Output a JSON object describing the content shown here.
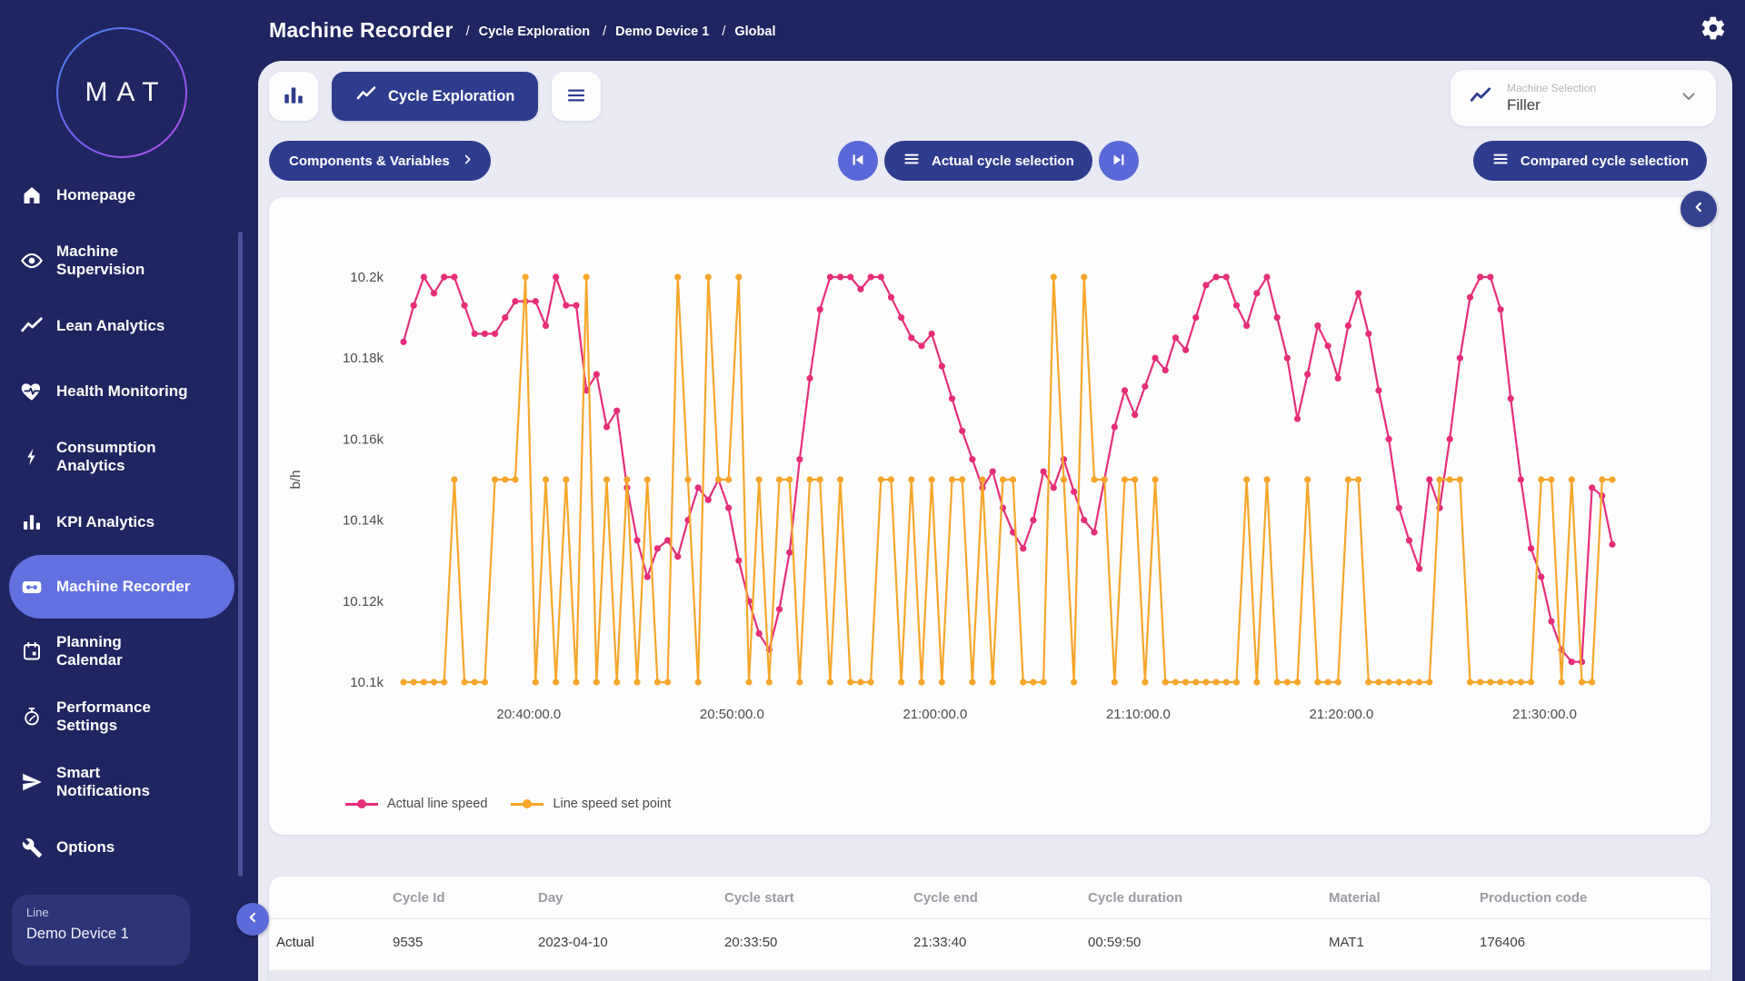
{
  "header": {
    "title": "Machine Recorder",
    "breadcrumbs": [
      "Cycle Exploration",
      "Demo Device 1",
      "Global"
    ],
    "gear_icon": "gear-icon"
  },
  "sidebar": {
    "logo": "MAT",
    "items": [
      {
        "icon": "home-icon",
        "lines": [
          "Homepage"
        ]
      },
      {
        "icon": "eye-icon",
        "lines": [
          "Machine",
          "Supervision"
        ]
      },
      {
        "icon": "trend-icon",
        "lines": [
          "Lean Analytics"
        ]
      },
      {
        "icon": "heart-pulse-icon",
        "lines": [
          "Health Monitoring"
        ]
      },
      {
        "icon": "bolt-icon",
        "lines": [
          "Consumption",
          "Analytics"
        ]
      },
      {
        "icon": "bar-chart-icon",
        "lines": [
          "KPI Analytics"
        ]
      },
      {
        "icon": "cassette-icon",
        "lines": [
          "Machine Recorder"
        ],
        "active": true
      },
      {
        "icon": "calendar-icon",
        "lines": [
          "Planning",
          "Calendar"
        ]
      },
      {
        "icon": "stopwatch-icon",
        "lines": [
          "Performance",
          "Settings"
        ]
      },
      {
        "icon": "send-icon",
        "lines": [
          "Smart",
          "Notifications"
        ]
      },
      {
        "icon": "wrench-icon",
        "lines": [
          "Options"
        ]
      }
    ],
    "line_card": {
      "label": "Line",
      "value": "Demo Device 1"
    }
  },
  "toolbar": {
    "cycle_exploration_label": "Cycle Exploration",
    "components_button": "Components & Variables",
    "actual_cycle_button": "Actual cycle selection",
    "compared_cycle_button": "Compared cycle selection",
    "machine_selection": {
      "label": "Machine Selection",
      "value": "Filler"
    }
  },
  "chart_data": {
    "type": "line",
    "title": "",
    "xlabel": "",
    "ylabel": "b/h",
    "grid": false,
    "legend_position": "bottom-left",
    "x_start": "20:33:50",
    "sample_interval_seconds": 30,
    "ylim": [
      10100,
      10200
    ],
    "y_ticks": [
      {
        "v": 10200,
        "label": "10.2k"
      },
      {
        "v": 10180,
        "label": "10.18k"
      },
      {
        "v": 10160,
        "label": "10.16k"
      },
      {
        "v": 10140,
        "label": "10.14k"
      },
      {
        "v": 10120,
        "label": "10.12k"
      },
      {
        "v": 10100,
        "label": "10.1k"
      }
    ],
    "x_ticks": [
      {
        "t": 370,
        "label": "20:40:00.0"
      },
      {
        "t": 970,
        "label": "20:50:00.0"
      },
      {
        "t": 1570,
        "label": "21:00:00.0"
      },
      {
        "t": 2170,
        "label": "21:10:00.0"
      },
      {
        "t": 2770,
        "label": "21:20:00.0"
      },
      {
        "t": 3370,
        "label": "21:30:00.0"
      }
    ],
    "series": [
      {
        "name": "Actual line speed",
        "color": "#e62e78",
        "values": [
          10184,
          10193,
          10200,
          10196,
          10200,
          10200,
          10193,
          10186,
          10186,
          10186,
          10190,
          10194,
          10194,
          10194,
          10188,
          10200,
          10193,
          10193,
          10172,
          10176,
          10163,
          10167,
          10148,
          10135,
          10126,
          10133,
          10135,
          10131,
          10140,
          10148,
          10145,
          10150,
          10143,
          10130,
          10120,
          10112,
          10108,
          10118,
          10132,
          10155,
          10175,
          10192,
          10200,
          10200,
          10200,
          10197,
          10200,
          10200,
          10195,
          10190,
          10185,
          10183,
          10186,
          10178,
          10170,
          10162,
          10155,
          10148,
          10152,
          10143,
          10137,
          10133,
          10140,
          10152,
          10148,
          10155,
          10147,
          10140,
          10137,
          10150,
          10163,
          10172,
          10166,
          10173,
          10180,
          10177,
          10185,
          10182,
          10190,
          10198,
          10200,
          10200,
          10193,
          10188,
          10196,
          10200,
          10190,
          10180,
          10165,
          10176,
          10188,
          10183,
          10175,
          10188,
          10196,
          10186,
          10172,
          10160,
          10143,
          10135,
          10128,
          10150,
          10143,
          10160,
          10180,
          10195,
          10200,
          10200,
          10192,
          10170,
          10150,
          10133,
          10126,
          10115,
          10108,
          10105,
          10105,
          10148,
          10146,
          10134
        ]
      },
      {
        "name": "Line speed set point",
        "color": "#f7a62b",
        "values": [
          10100,
          10100,
          10100,
          10100,
          10100,
          10150,
          10100,
          10100,
          10100,
          10150,
          10150,
          10150,
          10200,
          10100,
          10150,
          10100,
          10150,
          10100,
          10200,
          10100,
          10150,
          10100,
          10150,
          10100,
          10150,
          10100,
          10100,
          10200,
          10150,
          10100,
          10200,
          10150,
          10150,
          10200,
          10100,
          10150,
          10100,
          10150,
          10150,
          10100,
          10150,
          10150,
          10100,
          10150,
          10100,
          10100,
          10100,
          10150,
          10150,
          10100,
          10150,
          10100,
          10150,
          10100,
          10150,
          10150,
          10100,
          10150,
          10100,
          10150,
          10150,
          10100,
          10100,
          10100,
          10200,
          10150,
          10100,
          10200,
          10150,
          10150,
          10100,
          10150,
          10150,
          10100,
          10150,
          10100,
          10100,
          10100,
          10100,
          10100,
          10100,
          10100,
          10100,
          10150,
          10100,
          10150,
          10100,
          10100,
          10100,
          10150,
          10100,
          10100,
          10100,
          10150,
          10150,
          10100,
          10100,
          10100,
          10100,
          10100,
          10100,
          10100,
          10150,
          10150,
          10150,
          10100,
          10100,
          10100,
          10100,
          10100,
          10100,
          10100,
          10150,
          10150,
          10100,
          10150,
          10100,
          10100,
          10150,
          10150
        ]
      }
    ]
  },
  "table": {
    "headers": [
      "Cycle Id",
      "Day",
      "Cycle start",
      "Cycle end",
      "Cycle duration",
      "Material",
      "Production code"
    ],
    "row": {
      "name": "Actual",
      "cells": [
        "9535",
        "2023-04-10",
        "20:33:50",
        "21:33:40",
        "00:59:50",
        "MAT1",
        "176406"
      ]
    }
  }
}
